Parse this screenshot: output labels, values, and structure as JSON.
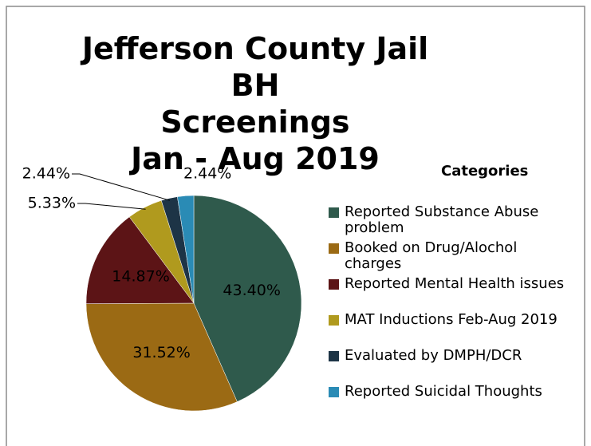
{
  "chart_data": {
    "type": "pie",
    "title": "Jefferson County Jail BH\nScreenings\nJan - Aug 2019",
    "legend_title": "Categories",
    "series": [
      {
        "categories": [
          "Reported Substance Abuse problem",
          "Booked on Drug/Alochol charges",
          "Reported Mental Health issues",
          "MAT Inductions Feb-Aug 2019",
          "Evaluated by DMPH/DCR",
          "Reported Suicidal Thoughts"
        ],
        "values": [
          43.4,
          31.52,
          14.87,
          5.33,
          2.44,
          2.44
        ],
        "value_labels": [
          "43.40%",
          "31.52%",
          "14.87%",
          "5.33%",
          "2.44%",
          "2.44%"
        ],
        "colors": [
          "#2f5a4c",
          "#9b6a14",
          "#5c1416",
          "#b09a1e",
          "#1d3446",
          "#2a8bb5"
        ]
      }
    ],
    "legend": "right"
  }
}
